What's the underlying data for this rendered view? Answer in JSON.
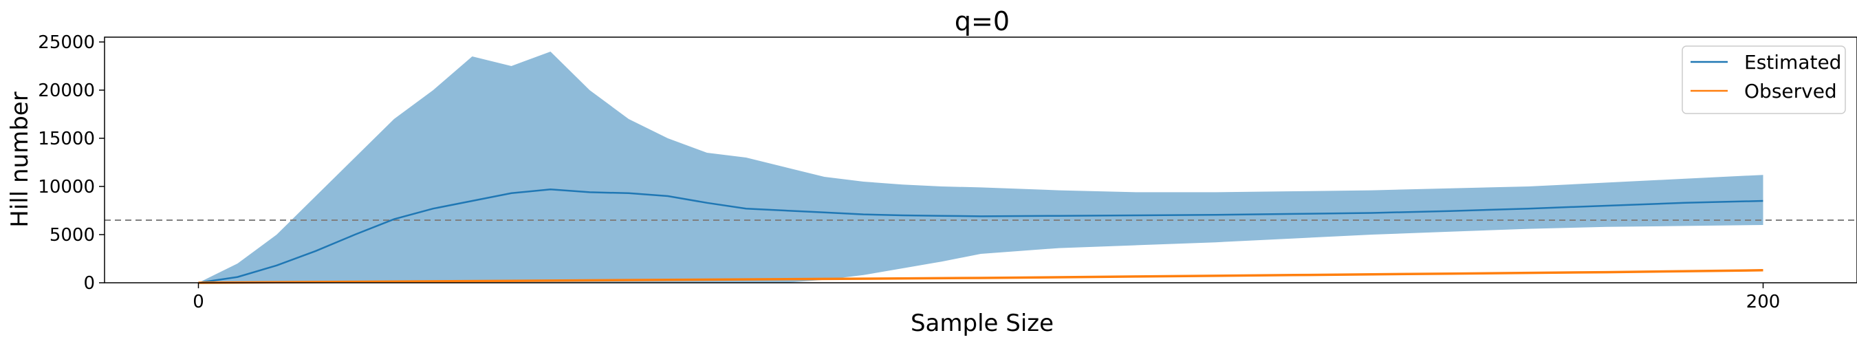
{
  "chart_data": {
    "type": "line",
    "title": "q=0",
    "xlabel": "Sample Size",
    "ylabel": "Hill number",
    "xlim": [
      -12,
      212
    ],
    "ylim": [
      0,
      25500
    ],
    "xticks": [
      0,
      200
    ],
    "yticks": [
      0,
      5000,
      10000,
      15000,
      20000,
      25000
    ],
    "grid": false,
    "legend_position": "top-right",
    "reference_line": {
      "y": 6500,
      "style": "dashed",
      "color": "#7f7f7f"
    },
    "colors": {
      "estimated": "#1f77b4",
      "band": "#8fbbd9",
      "observed": "#ff7f0e"
    },
    "series": [
      {
        "name": "Estimated",
        "color": "#1f77b4",
        "x": [
          0,
          5,
          10,
          15,
          20,
          25,
          30,
          35,
          40,
          45,
          50,
          55,
          60,
          65,
          70,
          75,
          80,
          85,
          90,
          95,
          100,
          110,
          120,
          130,
          140,
          150,
          160,
          170,
          180,
          190,
          200
        ],
        "y": [
          0,
          600,
          1800,
          3300,
          5000,
          6600,
          7700,
          8500,
          9300,
          9700,
          9400,
          9300,
          9000,
          8300,
          7700,
          7500,
          7300,
          7100,
          7000,
          6950,
          6900,
          6950,
          7000,
          7050,
          7150,
          7250,
          7450,
          7700,
          8000,
          8300,
          8500
        ],
        "lower": [
          0,
          0,
          0,
          0,
          0,
          0,
          0,
          0,
          0,
          0,
          0,
          0,
          0,
          0,
          0,
          0,
          300,
          800,
          1500,
          2200,
          3000,
          3600,
          3900,
          4200,
          4600,
          5000,
          5300,
          5600,
          5800,
          5900,
          6000
        ],
        "upper": [
          0,
          2000,
          5000,
          9000,
          13000,
          17000,
          20000,
          23500,
          22500,
          24000,
          20000,
          17000,
          15000,
          13500,
          13000,
          12000,
          11000,
          10500,
          10200,
          10000,
          9900,
          9600,
          9400,
          9400,
          9500,
          9600,
          9800,
          10000,
          10400,
          10800,
          11200
        ]
      },
      {
        "name": "Observed",
        "color": "#ff7f0e",
        "x": [
          0,
          20,
          40,
          60,
          80,
          100,
          120,
          140,
          160,
          180,
          200
        ],
        "y": [
          0,
          100,
          200,
          300,
          400,
          500,
          650,
          800,
          950,
          1100,
          1300
        ]
      }
    ]
  }
}
